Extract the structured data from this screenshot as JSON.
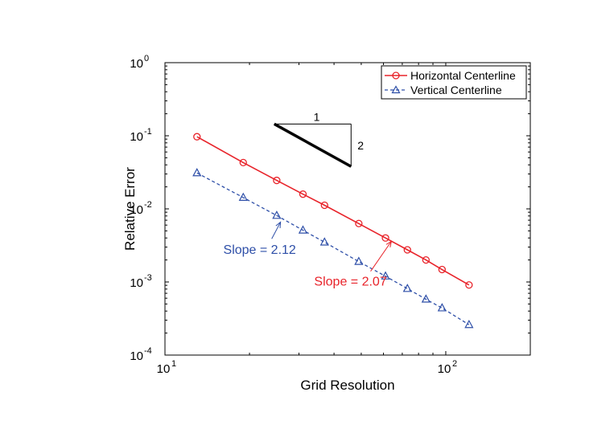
{
  "chart_data": {
    "type": "line",
    "xscale": "log",
    "yscale": "log",
    "xlabel": "Grid Resolution",
    "ylabel": "Relative Error",
    "xlim": [
      10,
      200
    ],
    "ylim": [
      0.0001,
      1
    ],
    "x_ticks": [
      {
        "value": 10,
        "base": "10",
        "exp": "1"
      },
      {
        "value": 100,
        "base": "10",
        "exp": "2"
      }
    ],
    "y_ticks": [
      {
        "value": 0.0001,
        "base": "10",
        "exp": "-4"
      },
      {
        "value": 0.001,
        "base": "10",
        "exp": "-3"
      },
      {
        "value": 0.01,
        "base": "10",
        "exp": "-2"
      },
      {
        "value": 0.1,
        "base": "10",
        "exp": "-1"
      },
      {
        "value": 1,
        "base": "10",
        "exp": "0"
      }
    ],
    "series": [
      {
        "name": "Horizontal Centerline",
        "color": "#e8232a",
        "marker": "circle",
        "dash": "solid",
        "x": [
          13,
          19,
          25,
          31,
          37,
          49,
          61,
          73,
          85,
          97,
          121
        ],
        "values": [
          0.097,
          0.043,
          0.0245,
          0.0159,
          0.0112,
          0.0063,
          0.004,
          0.00275,
          0.002,
          0.00148,
          0.00091
        ]
      },
      {
        "name": "Vertical Centerline",
        "color": "#2e4fa8",
        "marker": "triangle",
        "dash": "dashed",
        "x": [
          13,
          19,
          25,
          31,
          37,
          49,
          61,
          73,
          85,
          97,
          121
        ],
        "values": [
          0.031,
          0.0143,
          0.0081,
          0.0051,
          0.0035,
          0.0019,
          0.0012,
          0.00081,
          0.00058,
          0.00044,
          0.00026
        ]
      }
    ],
    "annotations": [
      {
        "text": "Slope = 2.12",
        "color": "#2e4fa8",
        "arrow_to": [
          25.8,
          0.0066
        ],
        "from": [
          24,
          0.0039
        ]
      },
      {
        "text": "Slope = 2.07",
        "color": "#e8232a",
        "arrow_to": [
          64,
          0.0036
        ],
        "from": [
          54,
          0.0014
        ]
      }
    ],
    "slope_triangle": {
      "run_label": "1",
      "rise_label": "2",
      "start": [
        24.5,
        0.145
      ],
      "end": [
        46,
        0.038
      ]
    },
    "legend_position": "top-right"
  }
}
